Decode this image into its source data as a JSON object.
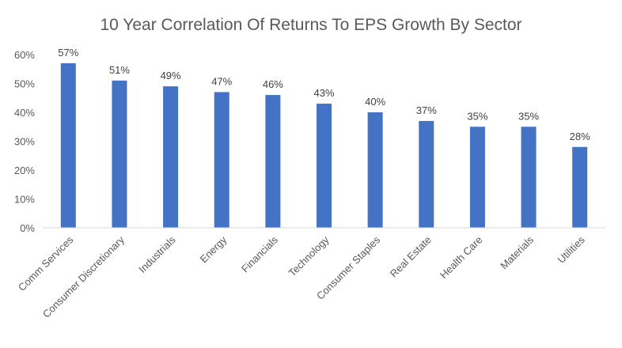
{
  "chart_data": {
    "type": "bar",
    "title": "10 Year Correlation Of Returns To EPS Growth By Sector",
    "xlabel": "",
    "ylabel": "",
    "categories": [
      "Comm Services",
      "Consumer Discretionary",
      "Industrials",
      "Energy",
      "Financials",
      "Technology",
      "Consumer Staples",
      "Real Estate",
      "Health Care",
      "Materials",
      "Utilities"
    ],
    "values": [
      57,
      51,
      49,
      47,
      46,
      43,
      40,
      37,
      35,
      35,
      28
    ],
    "data_labels": [
      "57%",
      "51%",
      "49%",
      "47%",
      "46%",
      "43%",
      "40%",
      "37%",
      "35%",
      "35%",
      "28%"
    ],
    "ylim": [
      0,
      60
    ],
    "y_ticks": [
      0,
      10,
      20,
      30,
      40,
      50,
      60
    ],
    "y_tick_labels": [
      "0%",
      "10%",
      "20%",
      "30%",
      "40%",
      "50%",
      "60%"
    ],
    "grid": false,
    "legend": "none",
    "bar_color": "#4472C4",
    "axis_color": "#D9D9D9"
  }
}
